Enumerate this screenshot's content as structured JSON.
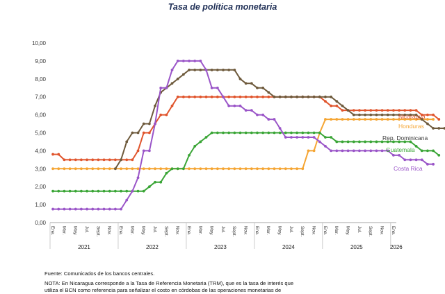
{
  "chart_data": {
    "type": "line",
    "title": "Tasa de política monetaria",
    "xlabel": "",
    "ylabel": "",
    "ylim": [
      0,
      10
    ],
    "y_ticks": [
      "0,00",
      "1,00",
      "2,00",
      "3,00",
      "4,00",
      "5,00",
      "6,00",
      "7,00",
      "8,00",
      "9,00",
      "10,00"
    ],
    "grid": false,
    "legend_placement": "right (labels at line ends)",
    "month_labels": [
      "Ene.",
      "Mar.",
      "May.",
      "Jul.",
      "Sept.",
      "Nov.",
      "Ene.",
      "Mar.",
      "May.",
      "Jul.",
      "Sept.",
      "Nov.",
      "Ene.",
      "Mar.",
      "May.",
      "Jul.",
      "Sept.",
      "Nov.",
      "Ene.",
      "Mar.",
      "May.",
      "Jul.",
      "Sept.",
      "Nov.",
      "Ene.",
      "Mar.",
      "May.",
      "Jul.",
      "Sept.",
      "Nov.",
      "Ene."
    ],
    "year_labels": [
      "2021",
      "2022",
      "2023",
      "2024",
      "2025",
      "2026"
    ],
    "x_start": "2021-01",
    "series": [
      {
        "name": "Nicaragua",
        "color": "#e0552d",
        "values": [
          3.8,
          3.8,
          3.5,
          3.5,
          3.5,
          3.5,
          3.5,
          3.5,
          3.5,
          3.5,
          3.5,
          3.5,
          3.5,
          3.5,
          3.5,
          4.0,
          5.0,
          5.0,
          5.5,
          6.0,
          6.0,
          6.5,
          7.0,
          7.0,
          7.0,
          7.0,
          7.0,
          7.0,
          7.0,
          7.0,
          7.0,
          7.0,
          7.0,
          7.0,
          7.0,
          7.0,
          7.0,
          7.0,
          7.0,
          7.0,
          7.0,
          7.0,
          7.0,
          7.0,
          7.0,
          7.0,
          7.0,
          7.0,
          6.75,
          6.5,
          6.5,
          6.25,
          6.25,
          6.25,
          6.25,
          6.25,
          6.25,
          6.25,
          6.25,
          6.25,
          6.25,
          6.25,
          6.25,
          6.25,
          6.25,
          6.0,
          6.0,
          6.0,
          5.75
        ]
      },
      {
        "name": "Honduras",
        "color": "#f5a533",
        "values": [
          3.0,
          3.0,
          3.0,
          3.0,
          3.0,
          3.0,
          3.0,
          3.0,
          3.0,
          3.0,
          3.0,
          3.0,
          3.0,
          3.0,
          3.0,
          3.0,
          3.0,
          3.0,
          3.0,
          3.0,
          3.0,
          3.0,
          3.0,
          3.0,
          3.0,
          3.0,
          3.0,
          3.0,
          3.0,
          3.0,
          3.0,
          3.0,
          3.0,
          3.0,
          3.0,
          3.0,
          3.0,
          3.0,
          3.0,
          3.0,
          3.0,
          3.0,
          3.0,
          3.0,
          3.0,
          4.0,
          4.0,
          5.0,
          5.75,
          5.75,
          5.75,
          5.75,
          5.75,
          5.75,
          5.75,
          5.75,
          5.75,
          5.75,
          5.75,
          5.75,
          5.75,
          5.75,
          5.75,
          5.75,
          5.75,
          5.75,
          5.75,
          5.75
        ]
      },
      {
        "name": "Rep. Dominicana",
        "color": "#6e5a3c",
        "values": [
          null,
          null,
          null,
          null,
          null,
          null,
          null,
          null,
          null,
          null,
          null,
          3.0,
          3.5,
          4.5,
          5.0,
          5.0,
          5.5,
          5.5,
          6.5,
          7.25,
          7.5,
          7.75,
          8.0,
          8.25,
          8.5,
          8.5,
          8.5,
          8.5,
          8.5,
          8.5,
          8.5,
          8.5,
          8.5,
          8.0,
          7.75,
          7.75,
          7.5,
          7.5,
          7.25,
          7.0,
          7.0,
          7.0,
          7.0,
          7.0,
          7.0,
          7.0,
          7.0,
          7.0,
          7.0,
          7.0,
          6.75,
          6.5,
          6.25,
          6.0,
          6.0,
          6.0,
          6.0,
          6.0,
          6.0,
          6.0,
          6.0,
          6.0,
          6.0,
          6.0,
          6.0,
          5.75,
          5.5,
          5.25,
          5.25,
          5.25
        ]
      },
      {
        "name": "Guatemala",
        "color": "#3aa536",
        "values": [
          1.75,
          1.75,
          1.75,
          1.75,
          1.75,
          1.75,
          1.75,
          1.75,
          1.75,
          1.75,
          1.75,
          1.75,
          1.75,
          1.75,
          1.75,
          1.75,
          1.75,
          2.0,
          2.25,
          2.25,
          2.75,
          3.0,
          3.0,
          3.0,
          3.75,
          4.25,
          4.5,
          4.75,
          5.0,
          5.0,
          5.0,
          5.0,
          5.0,
          5.0,
          5.0,
          5.0,
          5.0,
          5.0,
          5.0,
          5.0,
          5.0,
          5.0,
          5.0,
          5.0,
          5.0,
          5.0,
          5.0,
          5.0,
          4.75,
          4.75,
          4.5,
          4.5,
          4.5,
          4.5,
          4.5,
          4.5,
          4.5,
          4.5,
          4.5,
          4.5,
          4.5,
          4.5,
          4.5,
          4.5,
          4.25,
          4.0,
          4.0,
          4.0,
          3.75
        ]
      },
      {
        "name": "Costa Rica",
        "color": "#9a55c8",
        "values": [
          0.75,
          0.75,
          0.75,
          0.75,
          0.75,
          0.75,
          0.75,
          0.75,
          0.75,
          0.75,
          0.75,
          0.75,
          0.75,
          1.25,
          1.75,
          2.5,
          4.0,
          4.0,
          5.5,
          7.5,
          7.5,
          8.5,
          9.0,
          9.0,
          9.0,
          9.0,
          9.0,
          8.5,
          7.5,
          7.5,
          7.0,
          6.5,
          6.5,
          6.5,
          6.25,
          6.25,
          6.0,
          6.0,
          5.75,
          5.75,
          5.25,
          4.75,
          4.75,
          4.75,
          4.75,
          4.75,
          4.75,
          4.5,
          4.25,
          4.0,
          4.0,
          4.0,
          4.0,
          4.0,
          4.0,
          4.0,
          4.0,
          4.0,
          4.0,
          4.0,
          3.75,
          3.75,
          3.5,
          3.5,
          3.5,
          3.5,
          3.25,
          3.25
        ]
      }
    ]
  },
  "footer": {
    "source": "Fuente: Comunicados de los bancos centrales.",
    "note_line1": "NOTA: En Nicaragua corresponde a la Tasa de Referencia Monetaria (TRM), que es la tasa de interés que",
    "note_line2": "utiliza el BCN como referencia para señalizar el costo en córdobas de las operaciones monetarias de"
  }
}
